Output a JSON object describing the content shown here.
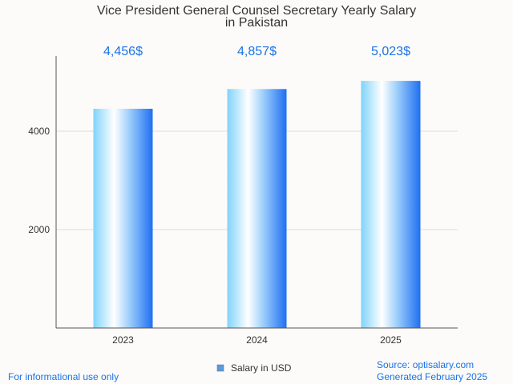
{
  "chart_data": {
    "type": "bar",
    "title_line1": "Vice President General Counsel Secretary Yearly Salary",
    "title_line2": "in Pakistan",
    "categories": [
      "2023",
      "2024",
      "2025"
    ],
    "series": [
      {
        "name": "Salary in USD",
        "values": [
          4456,
          4857,
          5023
        ]
      }
    ],
    "data_labels": [
      "4,456$",
      "4,857$",
      "5,023$"
    ],
    "y_ticks": [
      2000,
      4000
    ],
    "ylim": [
      0,
      5500
    ],
    "grid": true,
    "legend_position": "bottom-center",
    "colors": {
      "bar_light": "#e6f6ff",
      "bar_mid": "#7fd3fb",
      "bar_dark": "#1f6ff2",
      "label": "#1a73e8",
      "grid": "#dddddd",
      "axis": "#555555",
      "legend_box": "#5b9bd5"
    }
  },
  "footer": {
    "left": "For informational use only",
    "source": "Source: optisalary.com",
    "generated": "Generated February 2025"
  }
}
